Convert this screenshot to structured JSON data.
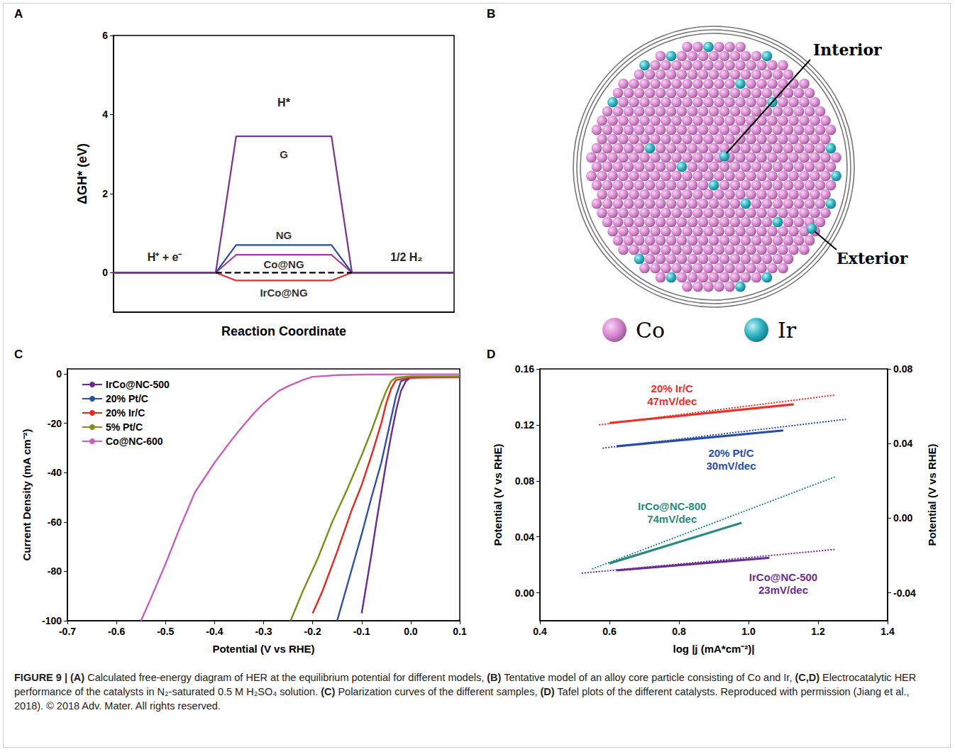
{
  "chart_data": [
    {
      "panel": "A",
      "type": "line",
      "xlabel": "Reaction Coordinate",
      "ylabel": "ΔGH* (eV)",
      "x": [
        0,
        3,
        3.6,
        6.4,
        7,
        10
      ],
      "xlim": [
        0,
        10
      ],
      "ylim": [
        -1,
        6
      ],
      "yticks": [
        0,
        2,
        4,
        6
      ],
      "tick_labels": "y",
      "series": [
        {
          "name": "IrCo@NG",
          "color": "#e0302a",
          "values": [
            0,
            0,
            -0.2,
            -0.2,
            0,
            0
          ],
          "label_at": [
            5,
            -0.5
          ]
        },
        {
          "name": "Co@NG",
          "color": "#9b3b9b",
          "values": [
            0,
            0,
            0.45,
            0.45,
            0,
            0
          ],
          "label_at": [
            5,
            0.22
          ]
        },
        {
          "name": "NG",
          "color": "#2b4c9b",
          "values": [
            0,
            0,
            0.7,
            0.7,
            0,
            0
          ],
          "label_at": [
            5,
            0.95
          ]
        },
        {
          "name": "G",
          "color": "#7b3294",
          "values": [
            0,
            0,
            3.45,
            3.45,
            0,
            0
          ],
          "label_at": [
            5,
            3.0
          ]
        },
        {
          "color": "#000000",
          "line_style": "dashed",
          "values": [
            null,
            0,
            0,
            0,
            0,
            null
          ]
        }
      ],
      "annotations": [
        {
          "text": "H*",
          "x": 5,
          "y": 4.3
        },
        {
          "text": "H⁺ + e⁻",
          "x": 1.5,
          "y": 0.4
        },
        {
          "text": "1/2 H₂",
          "x": 8.6,
          "y": 0.4
        }
      ]
    },
    {
      "panel": "C",
      "type": "line",
      "xlabel": "Potential (V vs RHE)",
      "ylabel": "Current Density (mA cm⁻²)",
      "xlim": [
        -0.7,
        0.1
      ],
      "xticks": [
        -0.7,
        -0.6,
        -0.5,
        -0.4,
        -0.3,
        -0.2,
        -0.1,
        {
          "value": 0,
          "label": "0.0"
        },
        0.1
      ],
      "ylim": [
        -100,
        2
      ],
      "yticks": [
        -100,
        -80,
        -60,
        -40,
        -20,
        0
      ],
      "legend": "upper left",
      "series": [
        {
          "name": "IrCo@NC-500",
          "color": "#6b2c91",
          "x": [
            -0.1,
            -0.09,
            -0.08,
            -0.07,
            -0.06,
            -0.05,
            -0.04,
            -0.03,
            -0.02,
            -0.01,
            0,
            0.05,
            0.1
          ],
          "values": [
            -97,
            -85,
            -73,
            -60,
            -48,
            -36,
            -25,
            -15,
            -7,
            -3,
            -1.5,
            -1.2,
            -1.2
          ]
        },
        {
          "name": "20% Pt/C",
          "color": "#2e4fa3",
          "x": [
            -0.15,
            -0.13,
            -0.1,
            -0.08,
            -0.06,
            -0.05,
            -0.04,
            -0.03,
            -0.02,
            0,
            0.1
          ],
          "values": [
            -100,
            -86,
            -65,
            -50,
            -36,
            -27,
            -18,
            -9,
            -3,
            -1.5,
            -1.2
          ]
        },
        {
          "name": "20% Ir/C",
          "color": "#e8251f",
          "x": [
            -0.2,
            -0.18,
            -0.15,
            -0.12,
            -0.1,
            -0.08,
            -0.06,
            -0.05,
            -0.04,
            -0.03,
            0,
            0.1
          ],
          "values": [
            -97,
            -88,
            -72,
            -55,
            -45,
            -33,
            -20,
            -12,
            -6,
            -2.5,
            -1.5,
            -1.3
          ]
        },
        {
          "name": "5% Pt/C",
          "color": "#7c8f1b",
          "x": [
            -0.245,
            -0.22,
            -0.19,
            -0.16,
            -0.13,
            -0.1,
            -0.08,
            -0.06,
            -0.05,
            -0.04,
            -0.03,
            0,
            0.1
          ],
          "values": [
            -100,
            -88,
            -75,
            -60,
            -47,
            -33,
            -23,
            -12,
            -7,
            -3,
            -1.5,
            -1,
            -1
          ]
        },
        {
          "name": "Co@NC-600",
          "color": "#c862b8",
          "x": [
            -0.55,
            -0.53,
            -0.5,
            -0.47,
            -0.44,
            -0.4,
            -0.37,
            -0.35,
            -0.32,
            -0.3,
            -0.27,
            -0.25,
            -0.22,
            -0.2,
            -0.15,
            -0.1,
            0,
            0.1
          ],
          "values": [
            -100,
            -91,
            -77,
            -62,
            -48,
            -36,
            -28,
            -23,
            -16,
            -12,
            -7,
            -5,
            -2.5,
            -1.2,
            -0.5,
            -0.3,
            -0.2,
            -0.2
          ]
        }
      ]
    },
    {
      "panel": "D",
      "type": "line",
      "xlabel": "log |j (mA*cm⁻²)|",
      "ylabel": "Potential (V vs RHE)",
      "y2label": "Potential (V vs RHE)",
      "xlim": [
        0.4,
        1.4
      ],
      "xticks": [
        0.4,
        0.6,
        0.8,
        {
          "value": 1,
          "label": "1.0"
        },
        1.2,
        1.4
      ],
      "ylim": [
        -0.02,
        0.16
      ],
      "yticks": [
        {
          "value": 0,
          "label": "0.00"
        },
        0.04,
        0.08,
        0.12,
        0.16
      ],
      "y2lim": [
        -0.055,
        0.08
      ],
      "y2ticks": [
        -0.04,
        {
          "value": 0,
          "label": "0.00"
        },
        0.04,
        0.08
      ],
      "series": [
        {
          "name": "20% Ir/C",
          "slope": "47mV/dec",
          "axis": "y2",
          "color": "#e8312a",
          "x": [
            0.6,
            1.13
          ],
          "values": [
            0.051,
            0.061
          ],
          "extension": {
            "x": [
              0.57,
              1.25
            ],
            "values": [
              0.05,
              0.066
            ],
            "line_style": "dotted"
          },
          "label_at": [
            0.78,
            0.146
          ]
        },
        {
          "name": "20% Pt/C",
          "slope": "30mV/dec",
          "axis": "y2",
          "color": "#2a4ea6",
          "x": [
            0.62,
            1.1
          ],
          "values": [
            0.0385,
            0.047
          ],
          "extension": {
            "x": [
              0.58,
              1.28
            ],
            "values": [
              0.0375,
              0.053
            ],
            "line_style": "dotted"
          },
          "label_at": [
            0.95,
            0.1
          ]
        },
        {
          "name": "IrCo@NC-800",
          "slope": "74mV/dec",
          "color": "#2a8a80",
          "x": [
            0.6,
            0.98
          ],
          "values": [
            0.021,
            0.05
          ],
          "extension": {
            "x": [
              0.55,
              1.25
            ],
            "values": [
              0.017,
              0.083
            ],
            "line_style": "dotted"
          },
          "label_at": [
            0.78,
            0.062
          ]
        },
        {
          "name": "IrCo@NC-500",
          "slope": "23mV/dec",
          "color": "#6a2d91",
          "x": [
            0.62,
            1.06
          ],
          "values": [
            0.016,
            0.025
          ],
          "extension": {
            "x": [
              0.52,
              1.25
            ],
            "values": [
              0.014,
              0.031
            ],
            "line_style": "dotted"
          },
          "label_at": [
            1.1,
            0.011
          ]
        }
      ]
    }
  ],
  "diagram": {
    "panel": "B",
    "labels": {
      "interior": "Interior",
      "exterior": "Exterior"
    },
    "legend": [
      {
        "name": "Co",
        "color": "#d98ad2"
      },
      {
        "name": "Ir",
        "color": "#2fb3c3"
      }
    ]
  },
  "caption": "FIGURE 9 | (A) Calculated free-energy diagram of HER at the equilibrium potential for different models, (B) Tentative model of an alloy core particle consisting of Co and Ir, (C,D) Electrocatalytic HER performance of the catalysts in N₂-saturated 0.5 M H₂SO₄ solution. (C) Polarization curves of the different samples, (D) Tafel plots of the different catalysts. Reproduced with permission (Jiang et al., 2018). © 2018 Adv. Mater. All rights reserved."
}
